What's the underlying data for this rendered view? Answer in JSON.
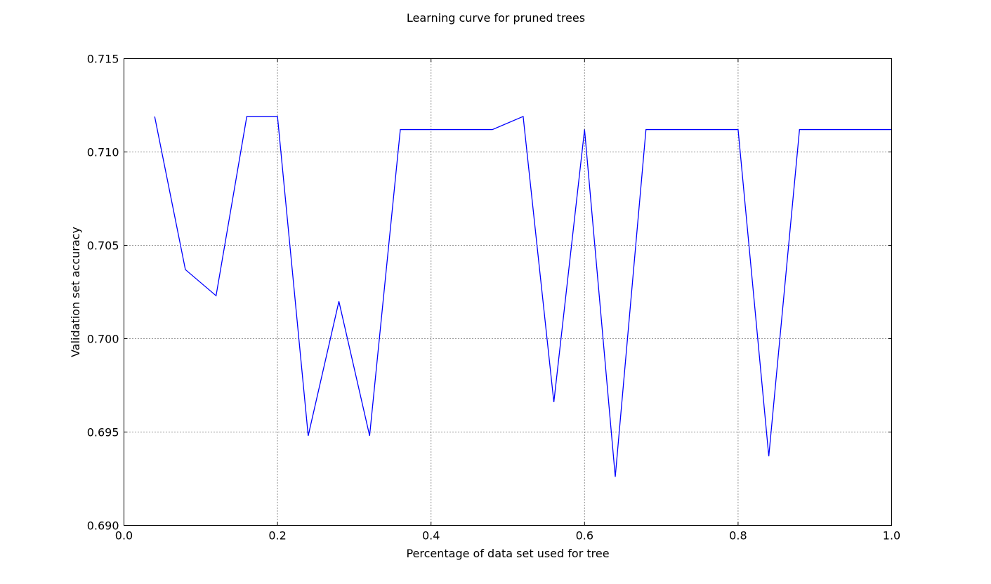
{
  "chart_data": {
    "type": "line",
    "title": "Learning curve for pruned trees",
    "xlabel": "Percentage of data set used for tree",
    "ylabel": "Validation set accuracy",
    "xlim": [
      0.0,
      1.0
    ],
    "ylim": [
      0.69,
      0.715
    ],
    "xticks": [
      "0.0",
      "0.2",
      "0.4",
      "0.6",
      "0.8",
      "1.0"
    ],
    "yticks": [
      "0.690",
      "0.695",
      "0.700",
      "0.705",
      "0.710",
      "0.715"
    ],
    "grid": true,
    "series": [
      {
        "color": "#0000ff",
        "x": [
          0.04,
          0.08,
          0.12,
          0.16,
          0.2,
          0.24,
          0.28,
          0.32,
          0.36,
          0.4,
          0.44,
          0.48,
          0.52,
          0.56,
          0.6,
          0.64,
          0.68,
          0.72,
          0.76,
          0.8,
          0.84,
          0.88,
          0.92,
          0.96,
          1.0
        ],
        "y": [
          0.7119,
          0.7037,
          0.7023,
          0.7119,
          0.7119,
          0.6948,
          0.702,
          0.6948,
          0.7112,
          0.7112,
          0.7112,
          0.7112,
          0.7119,
          0.6966,
          0.7112,
          0.6926,
          0.7112,
          0.7112,
          0.7112,
          0.7112,
          0.6937,
          0.7112,
          0.7112,
          0.7112,
          0.7112
        ]
      }
    ]
  }
}
